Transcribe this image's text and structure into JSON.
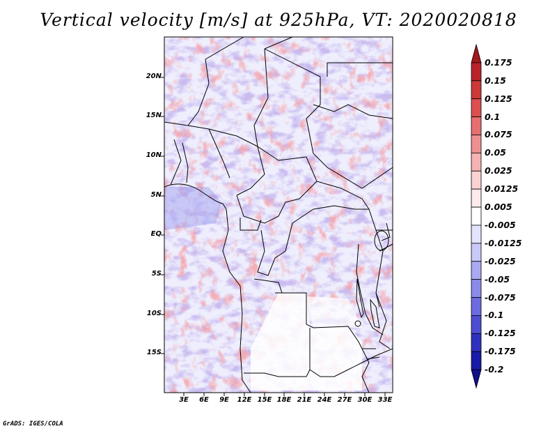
{
  "title": "Vertical velocity [m/s] at 925hPa, VT: 2020020818",
  "credit": "GrADS: IGES/COLA",
  "map": {
    "variable": "Vertical velocity",
    "units": "m/s",
    "level": "925hPa",
    "valid_time": "2020020818",
    "lat_range": [
      -19.5,
      24.5
    ],
    "lon_range": [
      0.5,
      34.5
    ],
    "lat_ticks": [
      "20N",
      "15N",
      "10N",
      "5N",
      "EQ",
      "5S",
      "10S",
      "15S"
    ],
    "lon_ticks": [
      "3E",
      "6E",
      "9E",
      "12E",
      "15E",
      "18E",
      "21E",
      "24E",
      "27E",
      "30E",
      "33E"
    ]
  },
  "colorbar": {
    "labels": [
      "0.175",
      "0.15",
      "0.125",
      "0.1",
      "0.075",
      "0.05",
      "0.025",
      "0.0125",
      "0.005",
      "-0.005",
      "-0.0125",
      "-0.025",
      "-0.05",
      "-0.075",
      "-0.1",
      "-0.125",
      "-0.175",
      "-0.2"
    ],
    "colors": [
      "#a3181b",
      "#b8232a",
      "#cd3838",
      "#dc5050",
      "#e66f6f",
      "#ef9090",
      "#f5b2b2",
      "#fad2d2",
      "#fdeaea",
      "#ffffff",
      "#e3e3fc",
      "#c9c9f8",
      "#a9a9f2",
      "#8a8aea",
      "#6c6ce0",
      "#4e4ed3",
      "#3030c0",
      "#1a1aa8",
      "#0f0f8c"
    ]
  }
}
